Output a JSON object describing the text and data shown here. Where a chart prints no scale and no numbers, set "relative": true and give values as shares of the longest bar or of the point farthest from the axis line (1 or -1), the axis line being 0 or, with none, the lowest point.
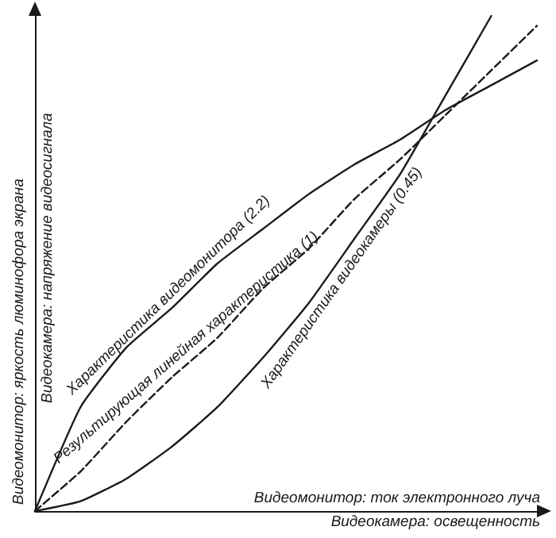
{
  "chart_data": {
    "type": "line",
    "relative": true,
    "xlabel": "Видеомонитор: ток электронного луча\nВидеокамера: освещенность",
    "ylabel": "Видеомонитор: яркость люминофора экрана\nВидеокамера: напряжение видеосигнала",
    "categories": [
      null,
      null,
      null,
      null,
      null,
      null,
      null,
      null,
      null,
      null,
      null,
      null
    ],
    "marker": "none",
    "grid": false,
    "legend": false,
    "series": [
      {
        "name": "Характеристика видеомонитора (2.2)",
        "color": "#1a1a1a",
        "line_style": "solid",
        "values": [
          0,
          0.21,
          0.33,
          0.41,
          0.5,
          0.57,
          0.64,
          0.7,
          0.75,
          0.81,
          0.86,
          0.91
        ]
      },
      {
        "name": "Результирующая линейная характеристика (1)",
        "color": "#1a1a1a",
        "line_style": "dashed",
        "values": [
          0,
          0.08,
          0.18,
          0.27,
          0.35,
          0.45,
          0.53,
          0.63,
          0.71,
          0.8,
          0.89,
          0.98
        ]
      },
      {
        "name": "Характеристика видеокамеры (0.45)",
        "color": "#1a1a1a",
        "line_style": "solid",
        "values": [
          0,
          0.02,
          0.065,
          0.13,
          0.21,
          0.31,
          0.42,
          0.55,
          0.68,
          0.84,
          1,
          null
        ]
      }
    ]
  }
}
